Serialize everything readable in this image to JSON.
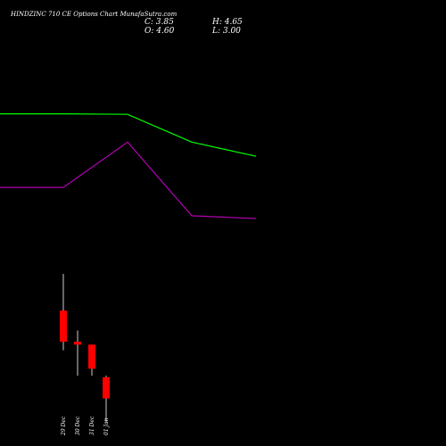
{
  "header": {
    "title": "HINDZINC 710  CE Options  Chart MunafaSutra.com",
    "close_label": "C: 3.85",
    "high_label": "H: 4.65",
    "open_label": "O: 4.60",
    "low_label": "L: 3.00"
  },
  "colors": {
    "background": "#000000",
    "text": "#ffffff",
    "candle_down": "#ff0000",
    "green_line": "#00ff00",
    "purple_line": "#b000b0"
  },
  "chart_data": {
    "type": "candlestick",
    "categories": [
      "29 Dec",
      "30 Dec",
      "31 Dec",
      "01 Jan"
    ],
    "candles": [
      {
        "date": "29 Dec",
        "open": 6.95,
        "high": 8.25,
        "low": 5.55,
        "close": 5.85
      },
      {
        "date": "30 Dec",
        "open": 5.85,
        "high": 6.25,
        "low": 4.65,
        "close": 5.75
      },
      {
        "date": "31 Dec",
        "open": 5.75,
        "high": 5.75,
        "low": 4.65,
        "close": 4.9
      },
      {
        "date": "01 Jan",
        "open": 4.6,
        "high": 4.65,
        "low": 3.0,
        "close": 3.85
      }
    ],
    "lines": [
      {
        "color": "#00ff00",
        "values": [
          13.9,
          13.88,
          12.9,
          12.4
        ]
      },
      {
        "color": "#b000b0",
        "values": [
          11.3,
          12.9,
          10.3,
          10.2
        ]
      }
    ],
    "ylim": [
      2.8,
      16.5
    ]
  }
}
